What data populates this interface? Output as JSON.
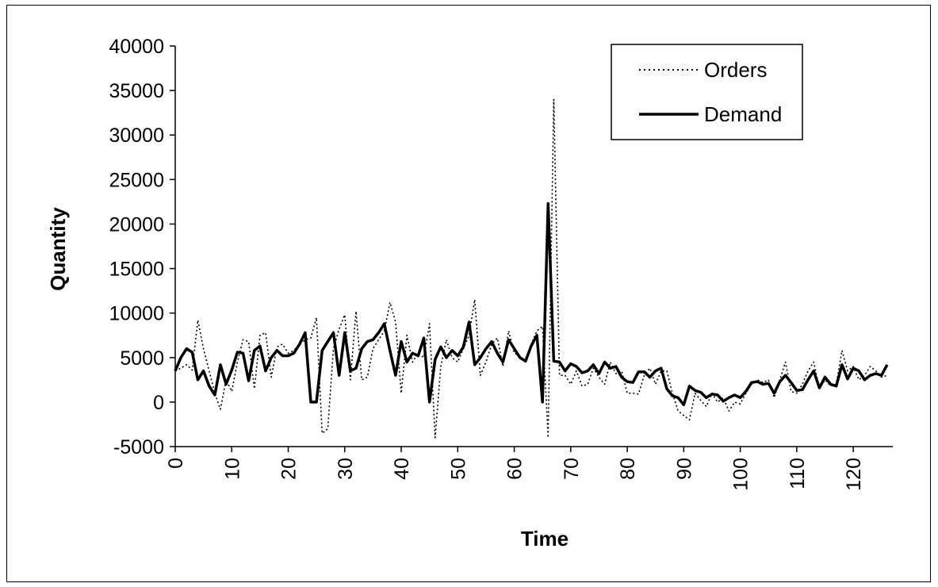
{
  "chart_data": {
    "type": "line",
    "title": "",
    "xlabel": "Time",
    "ylabel": "Quantity",
    "xlim": [
      0,
      127
    ],
    "ylim": [
      -5000,
      40000
    ],
    "xticks": [
      0,
      10,
      20,
      30,
      40,
      50,
      60,
      70,
      80,
      90,
      100,
      110,
      120
    ],
    "yticks": [
      -5000,
      0,
      5000,
      10000,
      15000,
      20000,
      25000,
      30000,
      35000,
      40000
    ],
    "grid": false,
    "legend": "top-right",
    "series": [
      {
        "name": "Orders",
        "style": "dotted",
        "color": "#000000",
        "x": [
          0,
          1,
          2,
          3,
          4,
          5,
          6,
          7,
          8,
          9,
          10,
          11,
          12,
          13,
          14,
          15,
          16,
          17,
          18,
          19,
          20,
          21,
          22,
          23,
          24,
          25,
          26,
          27,
          28,
          29,
          30,
          31,
          32,
          33,
          34,
          35,
          36,
          37,
          38,
          39,
          40,
          41,
          42,
          43,
          44,
          45,
          46,
          47,
          48,
          49,
          50,
          51,
          52,
          53,
          54,
          55,
          56,
          57,
          58,
          59,
          60,
          61,
          62,
          63,
          64,
          65,
          66,
          67,
          68,
          69,
          70,
          71,
          72,
          73,
          74,
          75,
          76,
          77,
          78,
          79,
          80,
          81,
          82,
          83,
          84,
          85,
          86,
          87,
          88,
          89,
          90,
          91,
          92,
          93,
          94,
          95,
          96,
          97,
          98,
          99,
          100,
          101,
          102,
          103,
          104,
          105,
          106,
          107,
          108,
          109,
          110,
          111,
          112,
          113,
          114,
          115,
          116,
          117,
          118,
          119,
          120,
          121,
          122,
          123,
          124,
          125,
          126
        ],
        "values": [
          3500,
          3800,
          4200,
          3600,
          9200,
          6000,
          3500,
          1000,
          -800,
          2500,
          1200,
          4500,
          7000,
          6800,
          1500,
          7500,
          7800,
          2800,
          6200,
          6500,
          5500,
          5800,
          6500,
          7000,
          7200,
          9500,
          -3500,
          -3000,
          6000,
          8200,
          9800,
          2500,
          10200,
          2500,
          2800,
          6000,
          7000,
          8000,
          11200,
          9000,
          1000,
          7500,
          4500,
          5500,
          5000,
          8800,
          -4000,
          4000,
          7000,
          5000,
          4500,
          6000,
          7500,
          11500,
          3000,
          4500,
          6500,
          7200,
          4000,
          8000,
          5500,
          5200,
          4500,
          6500,
          8000,
          8500,
          -4000,
          34000,
          3000,
          3000,
          2000,
          3500,
          1800,
          2000,
          3800,
          2800,
          2000,
          4500,
          3200,
          3500,
          1000,
          1000,
          900,
          3000,
          3800,
          2000,
          3500,
          3500,
          1000,
          -1000,
          -1500,
          -2000,
          1000,
          200,
          -500,
          1000,
          0,
          500,
          -1000,
          0,
          -200,
          1000,
          2000,
          2500,
          2200,
          2500,
          500,
          2500,
          4500,
          1200,
          1000,
          2000,
          3500,
          4500,
          1500,
          2500,
          1800,
          2000,
          5800,
          3500,
          4000,
          2500,
          3000,
          4000,
          3500,
          2800,
          3000
        ]
      },
      {
        "name": "Demand",
        "style": "solid",
        "color": "#000000",
        "x": [
          0,
          1,
          2,
          3,
          4,
          5,
          6,
          7,
          8,
          9,
          10,
          11,
          12,
          13,
          14,
          15,
          16,
          17,
          18,
          19,
          20,
          21,
          22,
          23,
          24,
          25,
          26,
          27,
          28,
          29,
          30,
          31,
          32,
          33,
          34,
          35,
          36,
          37,
          38,
          39,
          40,
          41,
          42,
          43,
          44,
          45,
          46,
          47,
          48,
          49,
          50,
          51,
          52,
          53,
          54,
          55,
          56,
          57,
          58,
          59,
          60,
          61,
          62,
          63,
          64,
          65,
          66,
          67,
          68,
          69,
          70,
          71,
          72,
          73,
          74,
          75,
          76,
          77,
          78,
          79,
          80,
          81,
          82,
          83,
          84,
          85,
          86,
          87,
          88,
          89,
          90,
          91,
          92,
          93,
          94,
          95,
          96,
          97,
          98,
          99,
          100,
          101,
          102,
          103,
          104,
          105,
          106,
          107,
          108,
          109,
          110,
          111,
          112,
          113,
          114,
          115,
          116,
          117,
          118,
          119,
          120,
          121,
          122,
          123,
          124,
          125,
          126
        ],
        "values": [
          3500,
          5000,
          6000,
          5600,
          2500,
          3500,
          1800,
          800,
          4200,
          2000,
          3600,
          5600,
          5500,
          2400,
          5800,
          6300,
          3500,
          5000,
          5800,
          5200,
          5200,
          5500,
          6500,
          7800,
          0,
          0,
          5800,
          6800,
          7800,
          3000,
          7800,
          3500,
          3800,
          6000,
          6800,
          7000,
          7800,
          8800,
          5800,
          3000,
          6800,
          4500,
          5500,
          5200,
          7200,
          0,
          4800,
          6200,
          5000,
          5800,
          5200,
          6200,
          9000,
          4200,
          5000,
          6000,
          6800,
          5500,
          4500,
          7000,
          6000,
          5000,
          4600,
          6300,
          7500,
          0,
          22300,
          4600,
          4500,
          3500,
          4300,
          4000,
          3300,
          3500,
          4200,
          3200,
          4500,
          3800,
          4000,
          2800,
          2300,
          2200,
          3400,
          3400,
          2800,
          3500,
          3800,
          1500,
          700,
          500,
          -300,
          1800,
          1300,
          1100,
          500,
          900,
          800,
          100,
          500,
          800,
          500,
          1200,
          2200,
          2300,
          2000,
          2100,
          1000,
          2300,
          3000,
          2200,
          1300,
          1400,
          2500,
          3500,
          1600,
          2800,
          2000,
          1800,
          4200,
          2600,
          3800,
          3500,
          2500,
          3000,
          3200,
          3000,
          4200
        ]
      }
    ]
  }
}
